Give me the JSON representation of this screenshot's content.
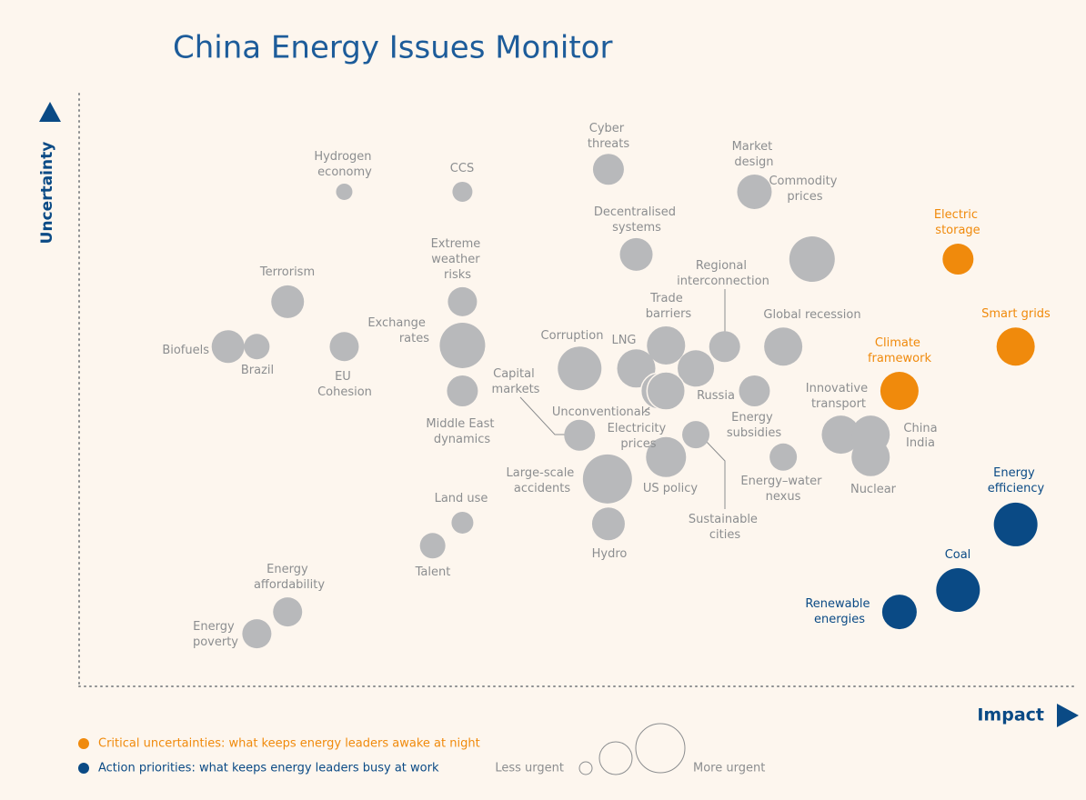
{
  "chart_data": {
    "type": "scatter",
    "title": "China Energy Issues Monitor",
    "x_label": "Impact",
    "y_label": "Uncertainty",
    "xlim": [
      0,
      100
    ],
    "ylim": [
      0,
      100
    ],
    "size_legend": {
      "low": "Less urgent",
      "high": "More urgent"
    },
    "series": [
      {
        "color": "#b8b9bb",
        "labels": [
          "Hydrogen economy",
          "CCS",
          "Cyber threats",
          "Market design",
          "Decentralised systems",
          "Commodity prices",
          "Extreme weather risks",
          "Terrorism",
          "Regional interconnection",
          "Trade barriers",
          "Global recession",
          "Biofuels",
          "Brazil",
          "EU Cohesion",
          "Exchange rates",
          "Corruption",
          "LNG",
          "Russia",
          "Unconventionals",
          "Electricity prices",
          "Energy subsidies",
          "Capital markets",
          "Middle East dynamics",
          "Innovative transport",
          "China",
          "India",
          "Sustainable cities",
          "US policy",
          "Energy–water nexus",
          "Nuclear",
          "Large-scale accidents",
          "Land use",
          "Hydro",
          "Talent",
          "Energy affordability",
          "Energy poverty"
        ],
        "x": [
          26.6,
          38.5,
          53.2,
          67.9,
          56.0,
          73.7,
          38.5,
          20.9,
          64.9,
          59.0,
          70.8,
          14.9,
          17.8,
          26.6,
          38.5,
          50.3,
          56.0,
          62.0,
          58.3,
          59.0,
          67.9,
          50.3,
          38.5,
          76.6,
          79.6,
          79.6,
          62.0,
          59.0,
          70.8,
          79.6,
          53.1,
          38.5,
          53.2,
          35.5,
          20.9,
          17.8
        ],
        "values": [
          83.7,
          83.7,
          87.5,
          83.7,
          73.1,
          72.3,
          65.1,
          65.1,
          57.5,
          57.7,
          57.5,
          57.5,
          57.5,
          57.5,
          57.7,
          53.8,
          53.8,
          53.8,
          50.0,
          50.0,
          50.0,
          42.5,
          50.0,
          42.6,
          42.6,
          42.6,
          42.6,
          38.8,
          38.8,
          38.8,
          35.1,
          27.7,
          27.5,
          23.8,
          12.6,
          8.9
        ],
        "size": [
          9,
          11,
          17,
          19,
          18,
          25,
          16,
          18,
          17,
          21,
          21,
          18,
          14,
          16,
          25,
          24,
          21,
          20,
          20,
          21,
          17,
          17,
          17,
          21,
          21,
          20,
          15,
          22,
          15,
          21,
          27,
          12,
          18,
          14,
          16,
          16
        ]
      },
      {
        "name": "Critical uncertainties: what keeps energy leaders awake at night",
        "color": "#f08a0c",
        "labels": [
          "Electric storage",
          "Smart grids",
          "Climate framework"
        ],
        "x": [
          88.4,
          94.2,
          82.5
        ],
        "values": [
          72.3,
          57.5,
          50.0
        ],
        "size": [
          17,
          21,
          21
        ]
      },
      {
        "name": "Action priorities: what keeps energy leaders busy at work",
        "color": "#0a4a85",
        "labels": [
          "Energy efficiency",
          "Coal",
          "Renewable energies"
        ],
        "x": [
          94.2,
          88.4,
          82.5
        ],
        "values": [
          27.4,
          16.3,
          12.6
        ],
        "size": [
          24,
          24,
          19
        ]
      }
    ]
  }
}
